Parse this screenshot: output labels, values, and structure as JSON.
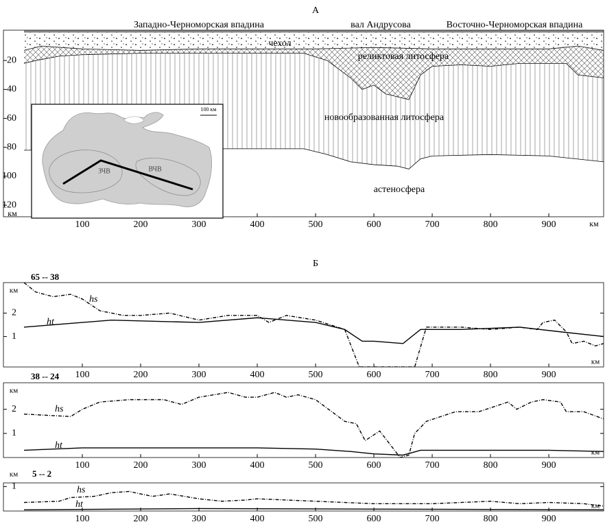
{
  "chart_data": [
    {
      "type": "section",
      "title": "А",
      "annotations": [
        "Западно-Черноморская впадина",
        "вал Андрусова",
        "Восточно-Черноморская впадина"
      ],
      "xlim": [
        0,
        994
      ],
      "xticks": [
        100,
        200,
        300,
        400,
        500,
        600,
        700,
        800,
        900
      ],
      "x_unit": "км",
      "ylim": [
        0,
        128
      ],
      "yticks": [
        20,
        40,
        60,
        80,
        100,
        120
      ],
      "y_unit": "км",
      "y_inverted": true,
      "layers": [
        {
          "label": "чехол",
          "pattern": "dots",
          "x": [
            0,
            30,
            100,
            200,
            300,
            400,
            500,
            600,
            700,
            800,
            900,
            950,
            994
          ],
          "base": [
            13,
            10,
            12,
            13,
            12,
            12,
            12,
            11,
            12,
            12,
            12,
            10,
            13
          ]
        },
        {
          "label": "реликтовая литосфера",
          "pattern": "cross",
          "x": [
            0,
            20,
            60,
            100,
            200,
            300,
            400,
            480,
            520,
            560,
            580,
            600,
            620,
            660,
            680,
            700,
            750,
            800,
            850,
            900,
            930,
            950,
            994
          ],
          "base": [
            22,
            20,
            17,
            16,
            15,
            15,
            15,
            15,
            20,
            32,
            40,
            37,
            43,
            47,
            30,
            24,
            23,
            24,
            22,
            22,
            22,
            30,
            32
          ]
        },
        {
          "label": "новообразованная литосфера",
          "pattern": "vertical",
          "x": [
            0,
            330,
            400,
            480,
            520,
            560,
            600,
            640,
            660,
            680,
            700,
            800,
            900,
            994
          ],
          "base": [
            82,
            81,
            81,
            81,
            85,
            90,
            92,
            93,
            95,
            88,
            86,
            85,
            86,
            90
          ]
        },
        {
          "label": "астеносфера",
          "pattern": "none"
        }
      ],
      "inset": {
        "scale": "100 км",
        "labels": [
          "ЗЧВ",
          "ВЧВ"
        ]
      }
    },
    {
      "type": "line",
      "panel": "Б",
      "title": "65 -- 38",
      "xlim": [
        0,
        994
      ],
      "xticks": [
        100,
        200,
        300,
        400,
        500,
        600,
        700,
        800,
        900
      ],
      "x_unit": "км",
      "ylim": [
        -0.3,
        3.3
      ],
      "yticks": [
        1,
        2
      ],
      "y_unit": "км",
      "series": [
        {
          "name": "hs",
          "color": "#000000",
          "dashed": true,
          "x": [
            0,
            20,
            50,
            80,
            100,
            130,
            170,
            200,
            250,
            300,
            350,
            400,
            420,
            450,
            500,
            550,
            575,
            670,
            690,
            750,
            800,
            850,
            880,
            890,
            910,
            930,
            940,
            960,
            980,
            994
          ],
          "values": [
            3.3,
            2.9,
            2.7,
            2.8,
            2.6,
            2.1,
            1.9,
            1.9,
            2.0,
            1.7,
            1.9,
            1.9,
            1.6,
            1.9,
            1.7,
            1.3,
            -0.3,
            -0.3,
            1.4,
            1.4,
            1.3,
            1.4,
            1.3,
            1.6,
            1.7,
            1.2,
            0.7,
            0.8,
            0.6,
            0.7
          ]
        },
        {
          "name": "ht",
          "color": "#000000",
          "dashed": false,
          "x": [
            0,
            100,
            150,
            300,
            400,
            500,
            550,
            580,
            600,
            650,
            680,
            750,
            850,
            920,
            994
          ],
          "values": [
            1.4,
            1.6,
            1.7,
            1.6,
            1.8,
            1.6,
            1.3,
            0.8,
            0.8,
            0.7,
            1.3,
            1.3,
            1.4,
            1.2,
            1.0
          ]
        }
      ]
    },
    {
      "type": "line",
      "title": "38 -- 24",
      "xlim": [
        0,
        994
      ],
      "xticks": [
        100,
        200,
        300,
        400,
        500,
        600,
        700,
        800,
        900
      ],
      "x_unit": "км",
      "ylim": [
        0,
        3.1
      ],
      "yticks": [
        1,
        2
      ],
      "y_unit": "км",
      "series": [
        {
          "name": "hs",
          "color": "#000000",
          "dashed": true,
          "x": [
            0,
            80,
            100,
            130,
            180,
            240,
            270,
            300,
            350,
            380,
            400,
            430,
            450,
            470,
            500,
            550,
            570,
            585,
            610,
            645,
            660,
            670,
            690,
            740,
            780,
            830,
            845,
            870,
            890,
            920,
            930,
            960,
            994
          ],
          "values": [
            1.8,
            1.7,
            2.0,
            2.3,
            2.4,
            2.4,
            2.2,
            2.5,
            2.7,
            2.5,
            2.5,
            2.7,
            2.5,
            2.6,
            2.4,
            1.5,
            1.4,
            0.7,
            1.1,
            0,
            0.1,
            1.0,
            1.5,
            1.9,
            1.9,
            2.3,
            2.0,
            2.3,
            2.4,
            2.3,
            1.9,
            1.9,
            1.6
          ]
        },
        {
          "name": "ht",
          "color": "#000000",
          "dashed": false,
          "x": [
            0,
            100,
            300,
            400,
            500,
            560,
            600,
            650,
            680,
            800,
            900,
            994
          ],
          "values": [
            0.3,
            0.4,
            0.4,
            0.4,
            0.35,
            0.25,
            0.15,
            0.1,
            0.3,
            0.3,
            0.3,
            0.25
          ]
        }
      ]
    },
    {
      "type": "line",
      "title": "5 -- 2",
      "xlim": [
        0,
        994
      ],
      "xticks": [
        100,
        200,
        300,
        400,
        500,
        600,
        700,
        800,
        900
      ],
      "x_unit": "км",
      "ylim": [
        0,
        1.15
      ],
      "yticks": [
        1
      ],
      "y_unit": "км",
      "series": [
        {
          "name": "hs",
          "color": "#000000",
          "dashed": true,
          "x": [
            0,
            60,
            80,
            120,
            150,
            180,
            220,
            250,
            300,
            340,
            380,
            400,
            500,
            550,
            600,
            650,
            700,
            800,
            850,
            900,
            960,
            994
          ],
          "values": [
            0.35,
            0.4,
            0.55,
            0.6,
            0.75,
            0.8,
            0.6,
            0.7,
            0.5,
            0.4,
            0.45,
            0.5,
            0.4,
            0.35,
            0.3,
            0.3,
            0.3,
            0.4,
            0.3,
            0.35,
            0.3,
            0.2
          ]
        },
        {
          "name": "ht",
          "color": "#000000",
          "dashed": false,
          "x": [
            0,
            300,
            600,
            994
          ],
          "values": [
            0.05,
            0.1,
            0.08,
            0.05
          ]
        }
      ]
    }
  ]
}
